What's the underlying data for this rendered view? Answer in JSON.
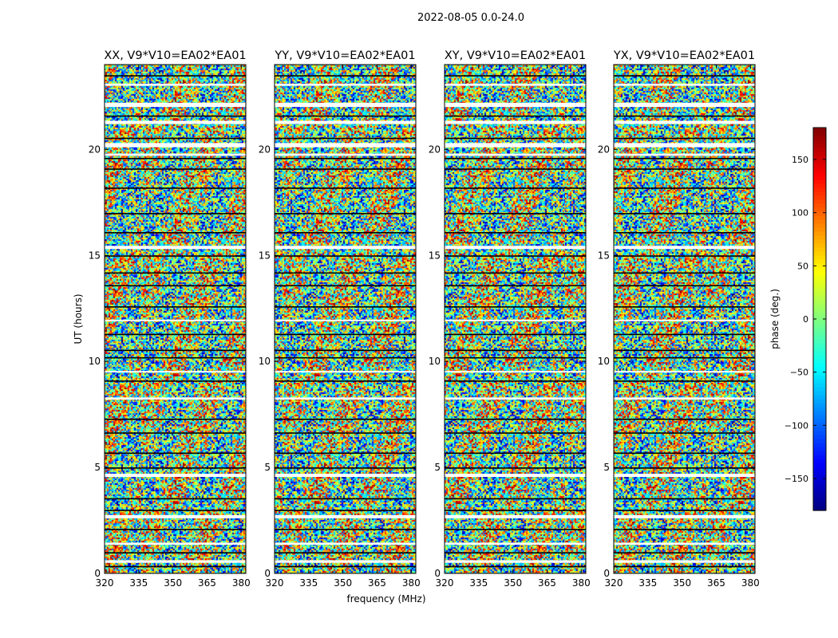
{
  "chart_data": {
    "type": "heatmap",
    "title": "2022-08-05 0.0-24.0",
    "xlabel": "frequency (MHz)",
    "ylabel": "UT (hours)",
    "xlim": [
      320,
      382
    ],
    "ylim": [
      0,
      24
    ],
    "xticks": [
      320,
      335,
      350,
      365,
      380
    ],
    "yticks": [
      0,
      5,
      10,
      15,
      20
    ],
    "panels": [
      {
        "title": "XX, V9*V10=EA02*EA01"
      },
      {
        "title": "YY, V9*V10=EA02*EA01"
      },
      {
        "title": "XY, V9*V10=EA02*EA01"
      },
      {
        "title": "YX, V9*V10=EA02*EA01"
      }
    ],
    "colorbar": {
      "label": "phase (deg.)",
      "range": [
        -180,
        180
      ],
      "ticks": [
        -150,
        -100,
        -50,
        0,
        50,
        100,
        150
      ],
      "colormap": "jet"
    }
  }
}
